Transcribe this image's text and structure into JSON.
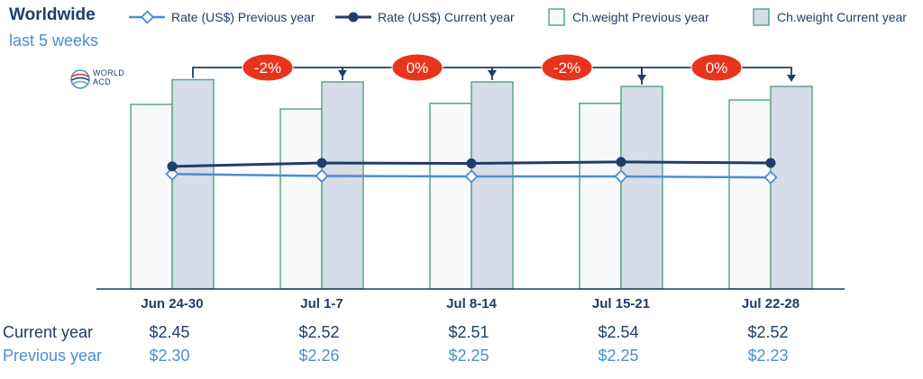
{
  "header": {
    "title": "Worldwide",
    "subtitle": "last 5 weeks",
    "logo_text": "WORLD ACD"
  },
  "colors": {
    "rate_prev": "#4a8fd0",
    "rate_cur": "#1f3d6b",
    "bar_prev_fill": "#f7f9fb",
    "bar_cur_fill": "#d6dce8",
    "bar_stroke": "#5ca886",
    "badge": "#e8341c",
    "connector": "#1f3d6b"
  },
  "legend": [
    {
      "name": "Rate (US$) Previous year",
      "kind": "line-open"
    },
    {
      "name": "Rate (US$) Current year",
      "kind": "line-filled"
    },
    {
      "name": "Ch.weight Previous year",
      "kind": "bar-prev"
    },
    {
      "name": "Ch.weight Current year",
      "kind": "bar-cur"
    }
  ],
  "chart_data": {
    "type": "bar",
    "categories": [
      "Jun 24-30",
      "Jul 1-7",
      "Jul 8-14",
      "Jul 15-21",
      "Jul 22-28"
    ],
    "series": [
      {
        "name": "Ch.weight Previous year",
        "type": "bar",
        "values": [
          82,
          80,
          82.5,
          82.5,
          84
        ]
      },
      {
        "name": "Ch.weight Current year",
        "type": "bar",
        "values": [
          93,
          92,
          92,
          90,
          90
        ]
      },
      {
        "name": "Rate (US$) Previous year",
        "type": "line",
        "values": [
          2.3,
          2.26,
          2.25,
          2.25,
          2.23
        ]
      },
      {
        "name": "Rate (US$) Current year",
        "type": "line",
        "values": [
          2.45,
          2.52,
          2.51,
          2.54,
          2.52
        ]
      }
    ],
    "changes": [
      "-2%",
      "0%",
      "-2%",
      "0%"
    ],
    "bar_ylim": [
      0,
      100
    ],
    "rate_ylim": [
      0,
      4.5
    ]
  },
  "table": {
    "rows": [
      {
        "label": "Current year",
        "values": [
          "$2.45",
          "$2.52",
          "$2.51",
          "$2.54",
          "$2.52"
        ]
      },
      {
        "label": "Previous year",
        "values": [
          "$2.30",
          "$2.26",
          "$2.25",
          "$2.25",
          "$2.23"
        ]
      }
    ]
  }
}
